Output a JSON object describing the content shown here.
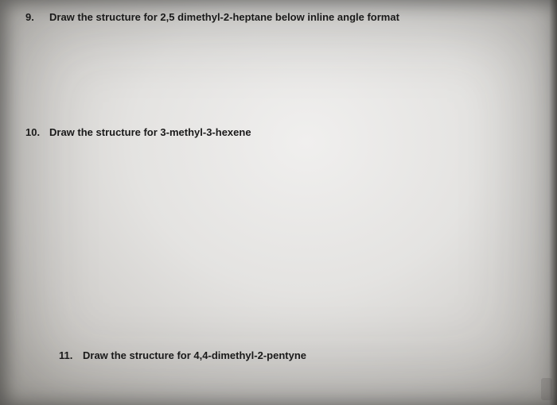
{
  "questions": {
    "q9": {
      "number": "9.",
      "text": "Draw the structure for 2,5 dimethyl-2-heptane below inline angle format"
    },
    "q10": {
      "number": "10.",
      "text": "Draw the structure for 3-methyl-3-hexene"
    },
    "q11": {
      "number": "11.",
      "text": "Draw the structure for 4,4-dimethyl-2-pentyne"
    }
  },
  "style": {
    "text_color": "#1a1a1a",
    "font_size_pt": 13,
    "font_weight": "bold",
    "background_gradient_center": "#f0efee",
    "background_gradient_edge": "#b5b2ad"
  }
}
